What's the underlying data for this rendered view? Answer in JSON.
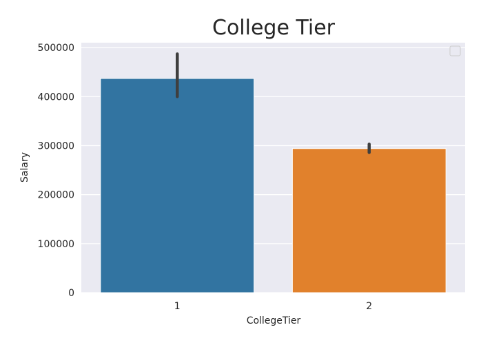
{
  "chart_data": {
    "type": "bar",
    "title": "College Tier",
    "xlabel": "CollegeTier",
    "ylabel": "Salary",
    "categories": [
      "1",
      "2"
    ],
    "values": [
      437000,
      294000
    ],
    "error_bars": [
      [
        400000,
        487000
      ],
      [
        286000,
        303000
      ]
    ],
    "ylim": [
      0,
      510000
    ],
    "yticks": [
      0,
      100000,
      200000,
      300000,
      400000,
      500000
    ],
    "ytick_labels": [
      "0",
      "100000",
      "200000",
      "300000",
      "400000",
      "500000"
    ],
    "grid": true,
    "legend": "top-right (empty)",
    "colors": {
      "bars": [
        "#3274a1",
        "#e1812c"
      ],
      "plot_background": "#eaeaf2",
      "grid": "#ffffff",
      "error_bar": "#3f3f3f"
    }
  }
}
